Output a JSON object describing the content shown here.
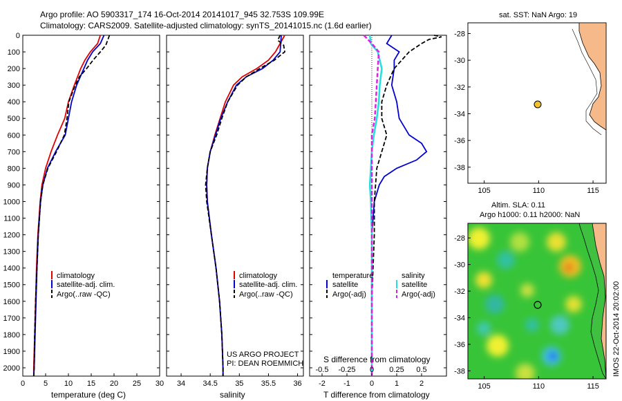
{
  "header": {
    "line1": "Argo profile: AO 5903317_174 16-Oct-2014 20141017_945 32.753S 109.99E",
    "line2": "Climatology: CARS2009. Satellite-adjusted climatology: synTS_20141015.nc (1.6d earlier)"
  },
  "colors": {
    "climatology": "#e00000",
    "satellite": "#0000d0",
    "argo": "#000000",
    "salinity_sat": "#20e0e0",
    "salinity_argo": "#e020e0",
    "land": "#f5b98a"
  },
  "depth_ticks": [
    "0",
    "100",
    "200",
    "300",
    "400",
    "500",
    "600",
    "700",
    "800",
    "900",
    "1000",
    "1100",
    "1200",
    "1300",
    "1400",
    "1500",
    "1600",
    "1700",
    "1800",
    "1900",
    "2000"
  ],
  "temp_panel": {
    "xlabel": "temperature (deg C)",
    "ticks": [
      "0",
      "5",
      "10",
      "15",
      "20",
      "25",
      "30"
    ],
    "legend": [
      "climatology",
      "satellite-adj. clim.",
      "Argo(..raw -QC)"
    ]
  },
  "sal_panel": {
    "xlabel": "salinity",
    "ticks": [
      "34",
      "34.5",
      "35",
      "35.5",
      "36"
    ],
    "legend": [
      "climatology",
      "satellite-adj. clim.",
      "Argo(..raw -QC)"
    ],
    "credit1": "US ARGO PROJECT",
    "credit2": "PI: DEAN ROEMMICH"
  },
  "diff_panel": {
    "xlabel": "T difference from climatology",
    "xlabel_top": "S difference from climatology",
    "ticks_t": [
      "-2",
      "-1",
      "0",
      "1",
      "2"
    ],
    "ticks_s": [
      "-0.5",
      "-0.25",
      "0",
      "0.25",
      "0.5"
    ],
    "legend_t_title": "temperature",
    "legend_s_title": "salinity",
    "legend_t": [
      "satellite",
      "Argo(-adj)"
    ],
    "legend_s": [
      "satellite",
      "Argo(-adj)"
    ]
  },
  "sst_map": {
    "title": "sat. SST: NaN Argo: 19",
    "xticks": [
      "105",
      "110",
      "115"
    ],
    "yticks": [
      "-28",
      "-30",
      "-32",
      "-34",
      "-36",
      "-38"
    ]
  },
  "sla_map": {
    "title1": "Altim. SLA: 0.11",
    "title2": "Argo h1000: 0.11 h2000: NaN",
    "xticks": [
      "105",
      "110",
      "115"
    ],
    "yticks": [
      "-28",
      "-30",
      "-32",
      "-34",
      "-36",
      "-38"
    ],
    "stamp": "IMOS 22-Oct-2014 20:02:00"
  },
  "chart_data": [
    {
      "type": "line",
      "panel": "temperature",
      "xlabel": "temperature (deg C)",
      "ylabel": "",
      "xlim": [
        0,
        30
      ],
      "ylim": [
        2050,
        0
      ],
      "series": [
        {
          "name": "climatology",
          "depth": [
            0,
            50,
            100,
            150,
            200,
            300,
            400,
            500,
            600,
            700,
            800,
            900,
            1000,
            1200,
            1400,
            1600,
            1800,
            2000,
            2050
          ],
          "values": [
            17,
            16.4,
            14.8,
            13.6,
            12.7,
            11.3,
            10,
            9.2,
            7.6,
            6.2,
            5,
            4.2,
            3.8,
            3.3,
            3,
            2.8,
            2.6,
            2.4,
            2.4
          ]
        },
        {
          "name": "satellite-adj. clim.",
          "depth": [
            0,
            50,
            100,
            150,
            200,
            300,
            400,
            500,
            600,
            700,
            800,
            900,
            1000,
            1200,
            1400,
            1600,
            1800,
            2000,
            2050
          ],
          "values": [
            17.8,
            17,
            15.3,
            14.2,
            13.4,
            11.8,
            10.7,
            10,
            9.3,
            7.2,
            5.4,
            4.4,
            3.9,
            3.4,
            3.1,
            2.9,
            2.7,
            2.5,
            2.4
          ]
        },
        {
          "name": "Argo(..raw -QC)",
          "depth": [
            0,
            30,
            60,
            100,
            150,
            200,
            250,
            300,
            400,
            500,
            600,
            700,
            800,
            900,
            1000,
            1200,
            1400,
            1600,
            1800,
            2000,
            2050
          ],
          "values": [
            19,
            18.6,
            18.2,
            17,
            15.4,
            14,
            12.4,
            11.5,
            10.1,
            9.7,
            9.1,
            7.4,
            5.5,
            4.4,
            3.9,
            3.4,
            3.1,
            2.8,
            2.6,
            2.5,
            2.4
          ]
        }
      ]
    },
    {
      "type": "line",
      "panel": "salinity",
      "xlabel": "salinity",
      "ylabel": "",
      "xlim": [
        33.75,
        36.1
      ],
      "ylim": [
        2050,
        0
      ],
      "series": [
        {
          "name": "climatology",
          "depth": [
            0,
            100,
            150,
            200,
            250,
            300,
            400,
            500,
            600,
            700,
            800,
            900,
            1000,
            1200,
            1400,
            1600,
            1800,
            2000,
            2050
          ],
          "values": [
            35.78,
            35.62,
            35.5,
            35.3,
            35.05,
            34.9,
            34.76,
            34.67,
            34.58,
            34.5,
            34.45,
            34.44,
            34.45,
            34.52,
            34.6,
            34.66,
            34.7,
            34.72,
            34.72
          ]
        },
        {
          "name": "satellite-adj. clim.",
          "depth": [
            0,
            100,
            150,
            200,
            250,
            300,
            400,
            500,
            600,
            700,
            800,
            900,
            1000,
            1200,
            1400,
            1600,
            1800,
            2000,
            2050
          ],
          "values": [
            35.72,
            35.7,
            35.58,
            35.4,
            35.12,
            34.95,
            34.8,
            34.68,
            34.59,
            34.5,
            34.45,
            34.44,
            34.45,
            34.52,
            34.6,
            34.66,
            34.7,
            34.72,
            34.72
          ]
        },
        {
          "name": "Argo(..raw -QC)",
          "depth": [
            0,
            30,
            60,
            100,
            150,
            200,
            250,
            300,
            400,
            500,
            600,
            700,
            800,
            900,
            1000,
            1200,
            1400,
            1600,
            1800,
            2000,
            2050
          ],
          "values": [
            35.7,
            35.66,
            35.76,
            35.78,
            35.6,
            35.35,
            35.12,
            34.97,
            34.8,
            34.7,
            34.61,
            34.5,
            34.45,
            34.42,
            34.44,
            34.52,
            34.6,
            34.66,
            34.7,
            34.72,
            34.72
          ]
        }
      ]
    },
    {
      "type": "line",
      "panel": "difference",
      "xlabel": "T difference from climatology",
      "xlabel_top": "S difference from climatology",
      "xlim": [
        -2.5,
        3.0
      ],
      "xlim_salinity": [
        -0.625,
        0.75
      ],
      "ylim": [
        2050,
        0
      ],
      "series": [
        {
          "name": "temperature satellite",
          "depth": [
            0,
            50,
            100,
            150,
            200,
            300,
            400,
            500,
            600,
            650,
            700,
            750,
            800,
            850,
            900,
            1000,
            1200,
            1500,
            2000,
            2050
          ],
          "values": [
            0.8,
            0.6,
            1.1,
            0.9,
            0.9,
            0.8,
            1.0,
            1.1,
            1.5,
            2.0,
            2.2,
            1.8,
            1.0,
            0.5,
            0.3,
            0.1,
            0.0,
            0.0,
            0.0,
            0.0
          ]
        },
        {
          "name": "temperature Argo(-adj)",
          "depth": [
            0,
            10,
            25,
            50,
            100,
            150,
            200,
            300,
            400,
            500,
            600,
            700,
            800,
            1000,
            1200,
            1600,
            2000,
            2050
          ],
          "values": [
            2.5,
            2.8,
            2.3,
            2.0,
            1.5,
            1.2,
            0.9,
            0.6,
            0.4,
            0.4,
            0.6,
            0.4,
            0.2,
            0.1,
            0.1,
            0.0,
            0.0,
            0.0
          ]
        },
        {
          "name": "salinity satellite",
          "depth": [
            0,
            50,
            100,
            200,
            300,
            400,
            500,
            600,
            700,
            800,
            900,
            1000,
            1200,
            1600,
            2000,
            2050
          ],
          "values": [
            -0.02,
            -0.01,
            0.06,
            0.1,
            0.08,
            0.07,
            0.05,
            0.02,
            0.0,
            -0.01,
            -0.02,
            -0.01,
            0.0,
            0.0,
            0.0,
            0.0
          ]
        },
        {
          "name": "salinity Argo(-adj)",
          "depth": [
            0,
            50,
            100,
            200,
            300,
            400,
            500,
            600,
            700,
            800,
            900,
            1000,
            2000,
            2050
          ],
          "values": [
            -0.08,
            0.0,
            0.07,
            0.06,
            0.05,
            0.04,
            0.03,
            0.0,
            0.0,
            0.0,
            0.0,
            0.0,
            0.0,
            0.0
          ]
        }
      ]
    }
  ]
}
